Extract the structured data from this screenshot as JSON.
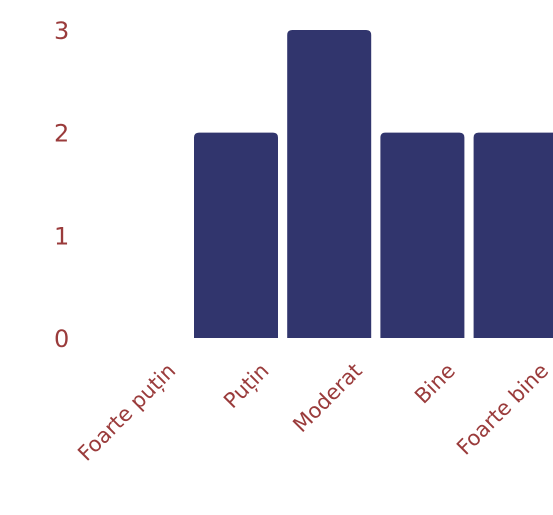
{
  "chart_data": {
    "type": "bar",
    "categories": [
      "Foarte puțin",
      "Puțin",
      "Moderat",
      "Bine",
      "Foarte bine"
    ],
    "values": [
      0,
      2,
      3,
      2,
      2
    ],
    "ylim": [
      0,
      3
    ],
    "yticks": [
      0,
      1,
      2,
      3
    ],
    "grid": false,
    "bar_color": "#31356d",
    "label_color": "#9a3b3b"
  }
}
